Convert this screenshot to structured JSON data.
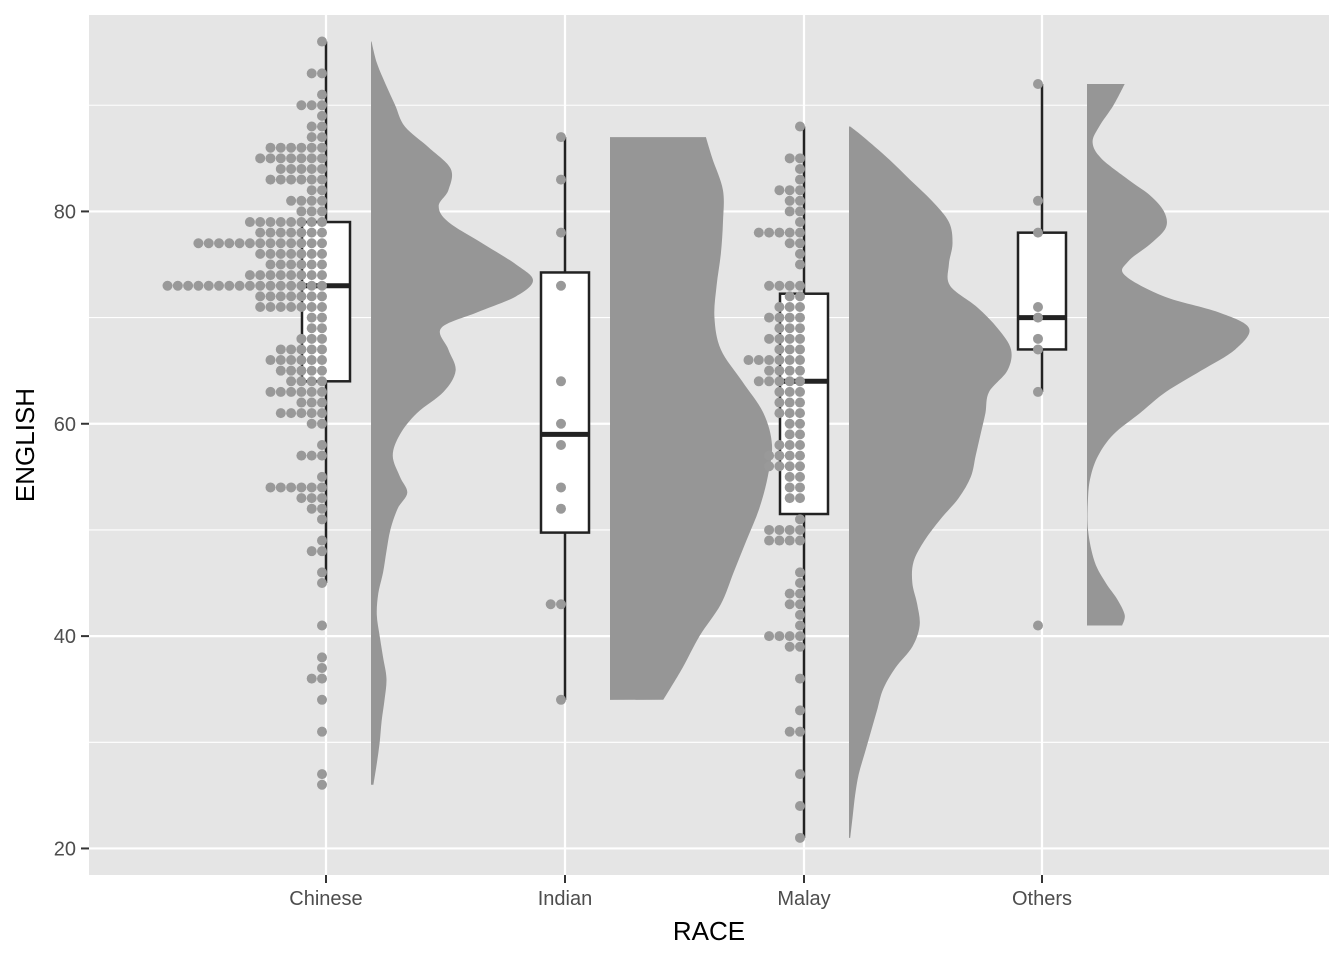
{
  "chart_data": {
    "type": "raincloud",
    "title": "",
    "xlabel": "RACE",
    "ylabel": "ENGLISH",
    "categories": [
      "Chinese",
      "Indian",
      "Malay",
      "Others"
    ],
    "ylim": [
      17.5,
      98.5
    ],
    "y_ticks": [
      20,
      40,
      60,
      80
    ],
    "y_minor_ticks": [
      30,
      50,
      70,
      90
    ],
    "grid": true,
    "legend": "none",
    "colors": {
      "panel": "#e5e5e5",
      "grid": "#ffffff",
      "points": "#999999",
      "density": "#969696",
      "box_fill": "#ffffff",
      "box_line": "#222222",
      "tick_text": "#4d4d4d",
      "axis_title": "#000000"
    },
    "groups": [
      {
        "name": "Chinese",
        "boxplot": {
          "min": 45,
          "q1": 64,
          "median": 73,
          "q3": 79,
          "max": 96,
          "outliers": [
            41,
            38,
            37,
            36,
            34,
            31,
            27,
            26
          ]
        },
        "density_range": [
          26,
          96
        ],
        "density": [
          [
            26,
            0.005
          ],
          [
            28,
            0.012
          ],
          [
            30,
            0.018
          ],
          [
            32,
            0.022
          ],
          [
            34,
            0.028
          ],
          [
            36,
            0.032
          ],
          [
            38,
            0.025
          ],
          [
            40,
            0.018
          ],
          [
            42,
            0.012
          ],
          [
            44,
            0.015
          ],
          [
            46,
            0.025
          ],
          [
            48,
            0.032
          ],
          [
            50,
            0.04
          ],
          [
            52,
            0.055
          ],
          [
            53.5,
            0.075
          ],
          [
            55,
            0.06
          ],
          [
            57,
            0.045
          ],
          [
            59,
            0.06
          ],
          [
            61,
            0.095
          ],
          [
            63,
            0.15
          ],
          [
            65,
            0.175
          ],
          [
            67,
            0.16
          ],
          [
            69,
            0.145
          ],
          [
            70.5,
            0.22
          ],
          [
            72,
            0.3
          ],
          [
            73.5,
            0.335
          ],
          [
            75,
            0.3
          ],
          [
            77,
            0.23
          ],
          [
            79,
            0.16
          ],
          [
            80.5,
            0.14
          ],
          [
            82,
            0.16
          ],
          [
            84,
            0.165
          ],
          [
            86,
            0.12
          ],
          [
            88,
            0.07
          ],
          [
            90,
            0.05
          ],
          [
            92,
            0.03
          ],
          [
            94,
            0.012
          ],
          [
            96,
            0.001
          ]
        ],
        "points": [
          {
            "y": 96,
            "n": 1
          },
          {
            "y": 93,
            "n": 2
          },
          {
            "y": 91,
            "n": 1
          },
          {
            "y": 90,
            "n": 3
          },
          {
            "y": 89,
            "n": 1
          },
          {
            "y": 88,
            "n": 2
          },
          {
            "y": 87,
            "n": 2
          },
          {
            "y": 86,
            "n": 6
          },
          {
            "y": 85,
            "n": 7
          },
          {
            "y": 84,
            "n": 5
          },
          {
            "y": 83,
            "n": 6
          },
          {
            "y": 82,
            "n": 2
          },
          {
            "y": 81,
            "n": 4
          },
          {
            "y": 80,
            "n": 3
          },
          {
            "y": 79,
            "n": 8
          },
          {
            "y": 78,
            "n": 7
          },
          {
            "y": 77,
            "n": 13
          },
          {
            "y": 76,
            "n": 7
          },
          {
            "y": 75,
            "n": 6
          },
          {
            "y": 74,
            "n": 8
          },
          {
            "y": 73,
            "n": 16
          },
          {
            "y": 72,
            "n": 7
          },
          {
            "y": 71,
            "n": 7
          },
          {
            "y": 70,
            "n": 2
          },
          {
            "y": 69,
            "n": 2
          },
          {
            "y": 68,
            "n": 3
          },
          {
            "y": 67,
            "n": 5
          },
          {
            "y": 66,
            "n": 6
          },
          {
            "y": 65,
            "n": 5
          },
          {
            "y": 64,
            "n": 4
          },
          {
            "y": 63,
            "n": 6
          },
          {
            "y": 62,
            "n": 3
          },
          {
            "y": 61,
            "n": 5
          },
          {
            "y": 60,
            "n": 2
          },
          {
            "y": 58,
            "n": 1
          },
          {
            "y": 57,
            "n": 3
          },
          {
            "y": 55,
            "n": 1
          },
          {
            "y": 54,
            "n": 6
          },
          {
            "y": 53,
            "n": 3
          },
          {
            "y": 52,
            "n": 2
          },
          {
            "y": 51,
            "n": 1
          },
          {
            "y": 49,
            "n": 1
          },
          {
            "y": 48,
            "n": 2
          },
          {
            "y": 46,
            "n": 1
          },
          {
            "y": 45,
            "n": 1
          },
          {
            "y": 41,
            "n": 1
          },
          {
            "y": 38,
            "n": 1
          },
          {
            "y": 37,
            "n": 1
          },
          {
            "y": 36,
            "n": 2
          },
          {
            "y": 34,
            "n": 1
          },
          {
            "y": 31,
            "n": 1
          },
          {
            "y": 27,
            "n": 1
          },
          {
            "y": 26,
            "n": 1
          }
        ]
      },
      {
        "name": "Indian",
        "boxplot": {
          "min": 34,
          "q1": 49.75,
          "median": 59,
          "q3": 74.25,
          "max": 87,
          "outliers": []
        },
        "density_range": [
          34,
          87
        ],
        "density": [
          [
            34,
            0.025
          ],
          [
            37,
            0.034
          ],
          [
            40,
            0.042
          ],
          [
            43,
            0.052
          ],
          [
            46,
            0.058
          ],
          [
            49,
            0.064
          ],
          [
            52,
            0.07
          ],
          [
            55,
            0.074
          ],
          [
            58,
            0.076
          ],
          [
            61,
            0.072
          ],
          [
            64,
            0.062
          ],
          [
            67,
            0.052
          ],
          [
            70,
            0.049
          ],
          [
            73,
            0.05
          ],
          [
            76,
            0.052
          ],
          [
            79,
            0.053
          ],
          [
            82,
            0.053
          ],
          [
            85,
            0.048
          ],
          [
            87,
            0.045
          ]
        ],
        "points": [
          {
            "y": 87,
            "n": 1
          },
          {
            "y": 83,
            "n": 1
          },
          {
            "y": 78,
            "n": 1
          },
          {
            "y": 73,
            "n": 1
          },
          {
            "y": 64,
            "n": 1
          },
          {
            "y": 60,
            "n": 1
          },
          {
            "y": 58,
            "n": 1
          },
          {
            "y": 54,
            "n": 1
          },
          {
            "y": 52,
            "n": 1
          },
          {
            "y": 43,
            "n": 2
          },
          {
            "y": 34,
            "n": 1
          }
        ]
      },
      {
        "name": "Malay",
        "boxplot": {
          "min": 21,
          "q1": 51.5,
          "median": 64,
          "q3": 72.25,
          "max": 88,
          "outliers": []
        },
        "density_range": [
          21,
          88
        ],
        "density": [
          [
            21,
            0.001
          ],
          [
            23,
            0.003
          ],
          [
            25,
            0.005
          ],
          [
            27,
            0.008
          ],
          [
            29,
            0.013
          ],
          [
            31,
            0.018
          ],
          [
            33,
            0.023
          ],
          [
            35,
            0.028
          ],
          [
            37,
            0.038
          ],
          [
            39,
            0.052
          ],
          [
            41,
            0.058
          ],
          [
            43,
            0.056
          ],
          [
            45,
            0.052
          ],
          [
            47,
            0.053
          ],
          [
            49,
            0.062
          ],
          [
            51,
            0.075
          ],
          [
            53,
            0.09
          ],
          [
            55,
            0.1
          ],
          [
            57,
            0.104
          ],
          [
            59,
            0.108
          ],
          [
            61,
            0.112
          ],
          [
            63,
            0.115
          ],
          [
            65,
            0.13
          ],
          [
            67,
            0.133
          ],
          [
            69,
            0.122
          ],
          [
            71,
            0.105
          ],
          [
            73,
            0.083
          ],
          [
            75,
            0.082
          ],
          [
            77,
            0.085
          ],
          [
            79,
            0.082
          ],
          [
            81,
            0.068
          ],
          [
            83,
            0.05
          ],
          [
            85,
            0.032
          ],
          [
            87,
            0.012
          ],
          [
            88,
            0.001
          ]
        ],
        "points": [
          {
            "y": 88,
            "n": 1
          },
          {
            "y": 85,
            "n": 2
          },
          {
            "y": 84,
            "n": 1
          },
          {
            "y": 83,
            "n": 1
          },
          {
            "y": 82,
            "n": 3
          },
          {
            "y": 81,
            "n": 2
          },
          {
            "y": 80,
            "n": 2
          },
          {
            "y": 79,
            "n": 1
          },
          {
            "y": 78,
            "n": 5
          },
          {
            "y": 77,
            "n": 2
          },
          {
            "y": 76,
            "n": 1
          },
          {
            "y": 75,
            "n": 1
          },
          {
            "y": 73,
            "n": 4
          },
          {
            "y": 72,
            "n": 2
          },
          {
            "y": 71,
            "n": 3
          },
          {
            "y": 70,
            "n": 4
          },
          {
            "y": 69,
            "n": 3
          },
          {
            "y": 68,
            "n": 4
          },
          {
            "y": 67,
            "n": 3
          },
          {
            "y": 66,
            "n": 6
          },
          {
            "y": 65,
            "n": 4
          },
          {
            "y": 64,
            "n": 5
          },
          {
            "y": 63,
            "n": 3
          },
          {
            "y": 62,
            "n": 3
          },
          {
            "y": 61,
            "n": 3
          },
          {
            "y": 60,
            "n": 2
          },
          {
            "y": 59,
            "n": 2
          },
          {
            "y": 58,
            "n": 3
          },
          {
            "y": 57,
            "n": 4
          },
          {
            "y": 56,
            "n": 4
          },
          {
            "y": 55,
            "n": 2
          },
          {
            "y": 54,
            "n": 2
          },
          {
            "y": 53,
            "n": 2
          },
          {
            "y": 51,
            "n": 1
          },
          {
            "y": 50,
            "n": 4
          },
          {
            "y": 49,
            "n": 4
          },
          {
            "y": 46,
            "n": 1
          },
          {
            "y": 45,
            "n": 1
          },
          {
            "y": 44,
            "n": 2
          },
          {
            "y": 43,
            "n": 2
          },
          {
            "y": 42,
            "n": 1
          },
          {
            "y": 41,
            "n": 1
          },
          {
            "y": 40,
            "n": 4
          },
          {
            "y": 39,
            "n": 2
          },
          {
            "y": 36,
            "n": 1
          },
          {
            "y": 33,
            "n": 1
          },
          {
            "y": 31,
            "n": 2
          },
          {
            "y": 27,
            "n": 1
          },
          {
            "y": 24,
            "n": 1
          },
          {
            "y": 21,
            "n": 1
          }
        ]
      },
      {
        "name": "Others",
        "boxplot": {
          "min": 63,
          "q1": 67,
          "median": 70,
          "q3": 78,
          "max": 92,
          "outliers": [
            41
          ]
        },
        "density_range": [
          41,
          92
        ],
        "density": [
          [
            41,
            0.0069
          ],
          [
            42,
            0.0074
          ],
          [
            43.5,
            0.0059
          ],
          [
            45,
            0.0037
          ],
          [
            47,
            0.0015
          ],
          [
            50,
            0.0002
          ],
          [
            53,
            0.0002
          ],
          [
            55,
            0.0007
          ],
          [
            57,
            0.0022
          ],
          [
            59,
            0.0052
          ],
          [
            61,
            0.0104
          ],
          [
            63,
            0.0155
          ],
          [
            65,
            0.0224
          ],
          [
            67,
            0.0291
          ],
          [
            69,
            0.0318
          ],
          [
            70.5,
            0.0258
          ],
          [
            72,
            0.0151
          ],
          [
            74,
            0.0074
          ],
          [
            75.3,
            0.0081
          ],
          [
            77,
            0.0126
          ],
          [
            78.5,
            0.0155
          ],
          [
            80,
            0.0151
          ],
          [
            81.5,
            0.0124
          ],
          [
            83,
            0.0081
          ],
          [
            85,
            0.0028
          ],
          [
            86.5,
            0.0011
          ],
          [
            88,
            0.0024
          ],
          [
            90,
            0.0052
          ],
          [
            92,
            0.0074
          ]
        ],
        "points": [
          {
            "y": 92,
            "n": 1
          },
          {
            "y": 81,
            "n": 1
          },
          {
            "y": 78,
            "n": 1
          },
          {
            "y": 71,
            "n": 1
          },
          {
            "y": 70,
            "n": 1
          },
          {
            "y": 68,
            "n": 1
          },
          {
            "y": 67,
            "n": 1
          },
          {
            "y": 63,
            "n": 1
          },
          {
            "y": 41,
            "n": 1
          }
        ]
      }
    ]
  }
}
